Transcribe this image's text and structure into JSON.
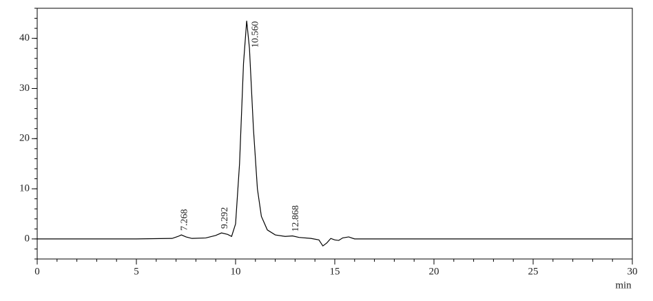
{
  "chart_data": {
    "type": "line",
    "x_label": "min",
    "x": [
      0,
      5,
      6.8,
      7.1,
      7.268,
      7.5,
      7.8,
      8.5,
      9.0,
      9.292,
      9.6,
      9.8,
      10.0,
      10.2,
      10.4,
      10.56,
      10.7,
      10.9,
      11.1,
      11.3,
      11.6,
      12.0,
      12.5,
      12.868,
      13.2,
      13.8,
      14.2,
      14.4,
      14.6,
      14.8,
      15.0,
      15.2,
      15.4,
      15.7,
      16.0,
      20,
      25,
      30
    ],
    "series": [
      {
        "color": "#000000",
        "values": [
          0,
          0,
          0.1,
          0.5,
          0.8,
          0.4,
          0.1,
          0.2,
          0.7,
          1.2,
          0.9,
          0.5,
          3,
          15,
          35,
          43.5,
          38,
          22,
          10,
          4.5,
          1.8,
          0.8,
          0.5,
          0.6,
          0.3,
          0.1,
          -0.2,
          -1.4,
          -0.8,
          0.1,
          -0.2,
          -0.3,
          0.2,
          0.4,
          0,
          0,
          0,
          0
        ]
      }
    ],
    "annotations": [
      {
        "text": "7.268",
        "x": 7.268,
        "y": 0.8
      },
      {
        "text": "9.292",
        "x": 9.292,
        "y": 1.2
      },
      {
        "text": "10.560",
        "x": 10.56,
        "y": 43.5
      },
      {
        "text": "12.868",
        "x": 12.868,
        "y": 0.6
      }
    ],
    "xlim": [
      0,
      30
    ],
    "xticks": [
      0,
      5,
      10,
      15,
      20,
      25,
      30
    ],
    "x_minor_step": 1,
    "ylim": [
      -4,
      46
    ],
    "yticks": [
      0,
      10,
      20,
      30,
      40
    ],
    "y_minor_step": 2
  }
}
